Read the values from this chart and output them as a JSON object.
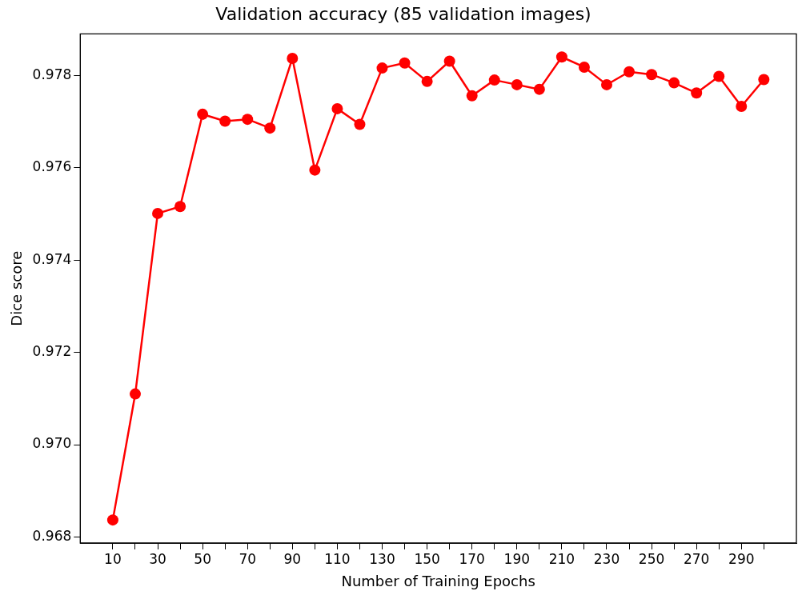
{
  "chart_data": {
    "type": "line",
    "title": "Validation accuracy (85 validation images)",
    "xlabel": "Number of Training Epochs",
    "ylabel": "Dice score",
    "x": [
      10,
      20,
      30,
      40,
      50,
      60,
      70,
      80,
      90,
      100,
      110,
      120,
      130,
      140,
      150,
      160,
      170,
      180,
      190,
      200,
      210,
      220,
      230,
      240,
      250,
      260,
      270,
      280,
      290,
      300
    ],
    "series": [
      {
        "color": "#ff0000",
        "values": [
          0.96837,
          0.9711,
          0.97501,
          0.97516,
          0.97716,
          0.97701,
          0.97705,
          0.97686,
          0.97837,
          0.97595,
          0.97728,
          0.97694,
          0.97816,
          0.97827,
          0.97787,
          0.97831,
          0.97756,
          0.9779,
          0.9778,
          0.9777,
          0.9784,
          0.97818,
          0.9778,
          0.97808,
          0.97802,
          0.97784,
          0.97762,
          0.97798,
          0.97733,
          0.97791
        ]
      }
    ],
    "xlim": [
      -4.5,
      314.5
    ],
    "xticks": [
      10,
      {
        "value": 20,
        "label": null
      },
      30,
      {
        "value": 40,
        "label": null
      },
      50,
      {
        "value": 60,
        "label": null
      },
      70,
      {
        "value": 80,
        "label": null
      },
      90,
      {
        "value": 100,
        "label": null
      },
      110,
      {
        "value": 120,
        "label": null
      },
      130,
      {
        "value": 140,
        "label": null
      },
      150,
      {
        "value": 160,
        "label": null
      },
      170,
      {
        "value": 180,
        "label": null
      },
      190,
      {
        "value": 200,
        "label": null
      },
      210,
      {
        "value": 220,
        "label": null
      },
      230,
      {
        "value": 240,
        "label": null
      },
      250,
      {
        "value": 260,
        "label": null
      },
      270,
      {
        "value": 280,
        "label": null
      },
      290,
      {
        "value": 300,
        "label": null
      }
    ],
    "ylim": [
      0.96787,
      0.9789
    ],
    "yticks": [
      0.968,
      {
        "value": 0.97,
        "label": "0.970"
      },
      0.972,
      0.974,
      0.976,
      0.978
    ],
    "grid": false,
    "legend": false,
    "marker": "circle",
    "line_style": "solid"
  }
}
